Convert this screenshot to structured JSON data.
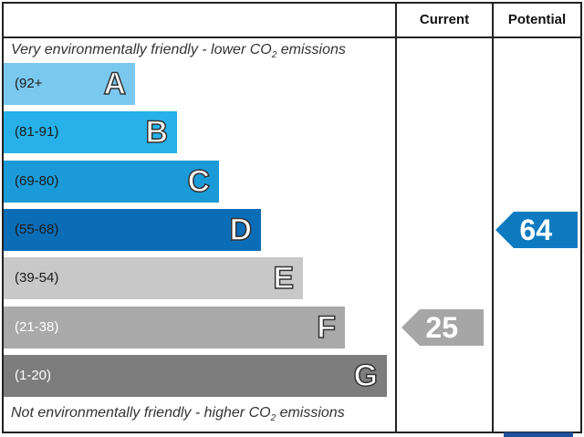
{
  "header": {
    "current_label": "Current",
    "potential_label": "Potential"
  },
  "captions": {
    "top_prefix": "Very environmentally friendly - lower CO",
    "top_sub": "2",
    "top_suffix": " emissions",
    "bottom_prefix": "Not environmentally friendly - higher CO",
    "bottom_sub": "2",
    "bottom_suffix": " emissions"
  },
  "chart_data": {
    "type": "bar",
    "title": "",
    "bands": [
      {
        "letter": "A",
        "range": "(92+",
        "color": "#7bc8ef",
        "text_color": "#1a1a1a"
      },
      {
        "letter": "B",
        "range": "(81-91)",
        "color": "#27b1e8",
        "text_color": "#1a1a1a"
      },
      {
        "letter": "C",
        "range": "(69-80)",
        "color": "#1a9ad6",
        "text_color": "#1a1a1a"
      },
      {
        "letter": "D",
        "range": "(55-68)",
        "color": "#0b6db5",
        "text_color": "#1a1a1a"
      },
      {
        "letter": "E",
        "range": "(39-54)",
        "color": "#c8c8c8",
        "text_color": "#1a1a1a"
      },
      {
        "letter": "F",
        "range": "(21-38)",
        "color": "#a9a9a9",
        "text_color": "#ffffff"
      },
      {
        "letter": "G",
        "range": "(1-20)",
        "color": "#7d7d7d",
        "text_color": "#ffffff"
      }
    ],
    "current": {
      "value": "25",
      "band": "F",
      "color": "#a6a6a6"
    },
    "potential": {
      "value": "64",
      "band": "D",
      "color": "#0d7ac0"
    }
  }
}
